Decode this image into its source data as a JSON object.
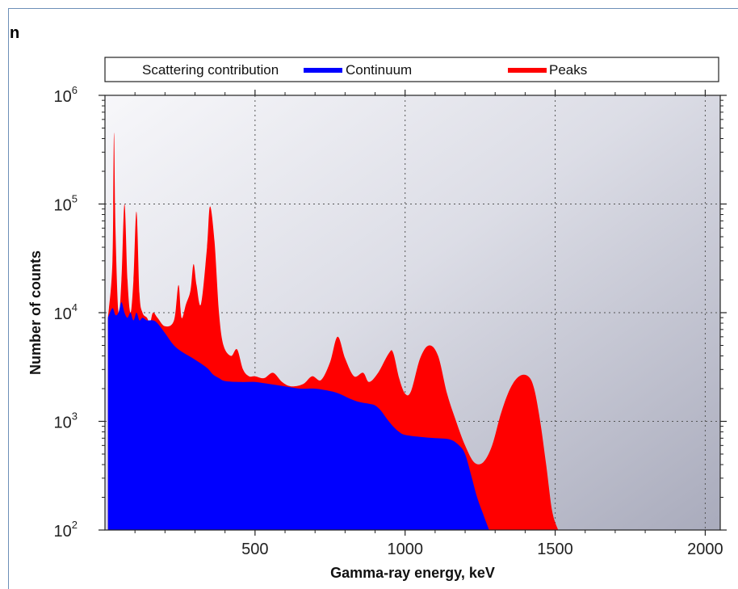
{
  "page_fragment": "n",
  "colors": {
    "continuum": "#0000ff",
    "peaks": "#ff0000",
    "plot_bg_start": "#f7f7fa",
    "plot_bg_end": "#a9abbc"
  },
  "chart_data": {
    "type": "area",
    "title": "",
    "xlabel": "Gamma-ray energy, keV",
    "ylabel": "Number of counts",
    "xlim": [
      0,
      2050
    ],
    "ylim": [
      100,
      1000000
    ],
    "yscale": "log",
    "grid": true,
    "x_ticks": [
      500,
      1000,
      1500,
      2000
    ],
    "y_ticks": [
      {
        "base": "10",
        "exp": "2"
      },
      {
        "base": "10",
        "exp": "3"
      },
      {
        "base": "10",
        "exp": "4"
      },
      {
        "base": "10",
        "exp": "5"
      },
      {
        "base": "10",
        "exp": "6"
      }
    ],
    "legend": {
      "placement": "top",
      "heading": "Scattering contribution",
      "entries": [
        "Continuum",
        "Peaks"
      ]
    },
    "series": [
      {
        "name": "Peaks",
        "points": [
          [
            10,
            9000
          ],
          [
            25,
            30000
          ],
          [
            30,
            450000
          ],
          [
            35,
            60000
          ],
          [
            45,
            10000
          ],
          [
            55,
            20000
          ],
          [
            65,
            100000
          ],
          [
            75,
            20000
          ],
          [
            85,
            10000
          ],
          [
            95,
            20000
          ],
          [
            105,
            85000
          ],
          [
            115,
            15000
          ],
          [
            125,
            10000
          ],
          [
            140,
            9000
          ],
          [
            150,
            8000
          ],
          [
            160,
            10000
          ],
          [
            175,
            9000
          ],
          [
            200,
            7500
          ],
          [
            230,
            8500
          ],
          [
            245,
            18000
          ],
          [
            255,
            9000
          ],
          [
            270,
            12000
          ],
          [
            285,
            16000
          ],
          [
            295,
            28000
          ],
          [
            305,
            18000
          ],
          [
            320,
            12000
          ],
          [
            340,
            40000
          ],
          [
            350,
            95000
          ],
          [
            365,
            45000
          ],
          [
            380,
            10000
          ],
          [
            395,
            5000
          ],
          [
            420,
            4000
          ],
          [
            440,
            4600
          ],
          [
            460,
            3000
          ],
          [
            480,
            2600
          ],
          [
            500,
            2600
          ],
          [
            530,
            2500
          ],
          [
            560,
            2800
          ],
          [
            590,
            2300
          ],
          [
            620,
            2100
          ],
          [
            660,
            2200
          ],
          [
            690,
            2600
          ],
          [
            720,
            2400
          ],
          [
            750,
            3500
          ],
          [
            775,
            6000
          ],
          [
            800,
            3800
          ],
          [
            830,
            2600
          ],
          [
            860,
            2800
          ],
          [
            880,
            2300
          ],
          [
            910,
            2800
          ],
          [
            945,
            4200
          ],
          [
            960,
            4300
          ],
          [
            980,
            2500
          ],
          [
            1000,
            1800
          ],
          [
            1020,
            1900
          ],
          [
            1050,
            3800
          ],
          [
            1080,
            5000
          ],
          [
            1110,
            4000
          ],
          [
            1140,
            1800
          ],
          [
            1170,
            1000
          ],
          [
            1200,
            600
          ],
          [
            1230,
            420
          ],
          [
            1260,
            420
          ],
          [
            1290,
            600
          ],
          [
            1320,
            1200
          ],
          [
            1350,
            2000
          ],
          [
            1380,
            2600
          ],
          [
            1410,
            2600
          ],
          [
            1430,
            2000
          ],
          [
            1450,
            1000
          ],
          [
            1470,
            400
          ],
          [
            1490,
            150
          ],
          [
            1510,
            100
          ]
        ]
      },
      {
        "name": "Continuum",
        "points": [
          [
            10,
            9000
          ],
          [
            25,
            11000
          ],
          [
            35,
            9500
          ],
          [
            45,
            10000
          ],
          [
            55,
            12500
          ],
          [
            65,
            10000
          ],
          [
            75,
            9000
          ],
          [
            85,
            10000
          ],
          [
            95,
            8500
          ],
          [
            105,
            10000
          ],
          [
            115,
            8500
          ],
          [
            125,
            9000
          ],
          [
            140,
            8500
          ],
          [
            160,
            8500
          ],
          [
            175,
            8000
          ],
          [
            200,
            6500
          ],
          [
            230,
            5000
          ],
          [
            260,
            4300
          ],
          [
            300,
            3700
          ],
          [
            340,
            3100
          ],
          [
            360,
            2700
          ],
          [
            380,
            2500
          ],
          [
            400,
            2350
          ],
          [
            450,
            2300
          ],
          [
            500,
            2300
          ],
          [
            550,
            2200
          ],
          [
            600,
            2100
          ],
          [
            650,
            2000
          ],
          [
            700,
            2000
          ],
          [
            750,
            1900
          ],
          [
            780,
            1800
          ],
          [
            820,
            1600
          ],
          [
            850,
            1500
          ],
          [
            880,
            1450
          ],
          [
            900,
            1400
          ],
          [
            920,
            1250
          ],
          [
            940,
            1050
          ],
          [
            960,
            900
          ],
          [
            980,
            800
          ],
          [
            1000,
            750
          ],
          [
            1050,
            720
          ],
          [
            1100,
            700
          ],
          [
            1150,
            680
          ],
          [
            1180,
            600
          ],
          [
            1200,
            500
          ],
          [
            1220,
            320
          ],
          [
            1240,
            200
          ],
          [
            1260,
            140
          ],
          [
            1280,
            100
          ]
        ]
      }
    ]
  }
}
